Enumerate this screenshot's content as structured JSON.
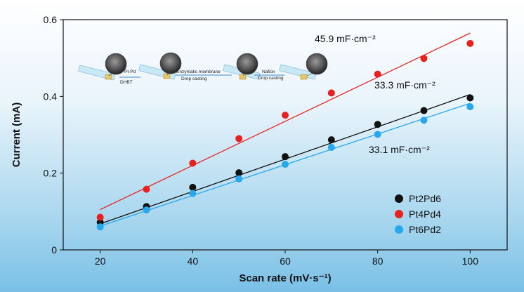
{
  "chart_data": {
    "type": "scatter",
    "xlabel": "Scan rate (mV·s⁻¹)",
    "ylabel": "Current (mA)",
    "xlim": [
      12,
      108
    ],
    "ylim": [
      0,
      0.6
    ],
    "x_ticks": [
      20,
      40,
      60,
      80,
      100
    ],
    "y_ticks": [
      0,
      0.2,
      0.4,
      0.6
    ],
    "x_tick_labels": [
      "20",
      "40",
      "60",
      "80",
      "100"
    ],
    "y_tick_labels": [
      "0",
      "0.2",
      "0.4",
      "0.6"
    ],
    "grid": false,
    "legend_position": "bottom-right",
    "x": [
      20,
      30,
      40,
      50,
      60,
      70,
      80,
      90,
      100
    ],
    "series": [
      {
        "name": "Pt2Pd6",
        "color": "#111111",
        "values": [
          0.072,
          0.113,
          0.163,
          0.201,
          0.243,
          0.287,
          0.327,
          0.363,
          0.396
        ],
        "fit": [
          0.068,
          0.405
        ],
        "annotation": "33.3 mF·cm⁻²"
      },
      {
        "name": "Pt4Pd4",
        "color": "#e8201f",
        "values": [
          0.085,
          0.158,
          0.226,
          0.29,
          0.351,
          0.409,
          0.458,
          0.499,
          0.538
        ],
        "fit": [
          0.105,
          0.565
        ],
        "annotation": "45.9 mF·cm⁻²"
      },
      {
        "name": "Pt6Pd2",
        "color": "#27a8ee",
        "values": [
          0.06,
          0.104,
          0.147,
          0.185,
          0.223,
          0.267,
          0.301,
          0.338,
          0.373
        ],
        "fit": [
          0.062,
          0.382
        ],
        "annotation": "33.1 mF·cm⁻²"
      }
    ]
  },
  "inset": {
    "steps": [
      {
        "top": "Pt-Pd",
        "bottom": "DHBT"
      },
      {
        "top": "Enzymatic membrane",
        "bottom": "Drop casting"
      },
      {
        "top": "Nafion",
        "bottom": "Drop casting"
      }
    ]
  }
}
